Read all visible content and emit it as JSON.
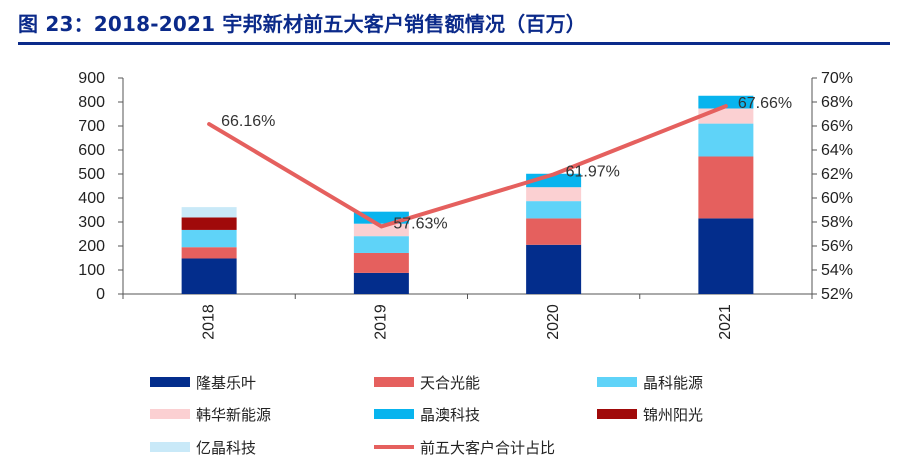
{
  "title": "图 23：2018-2021 宇邦新材前五大客户销售额情况（百万）",
  "chart_data": {
    "type": "bar",
    "stacked": true,
    "categories": [
      "2018",
      "2019",
      "2020",
      "2021"
    ],
    "series": [
      {
        "name": "隆基乐叶",
        "color": "#032d8c",
        "values": [
          148,
          88,
          205,
          315
        ]
      },
      {
        "name": "天合光能",
        "color": "#e5605e",
        "values": [
          47,
          83,
          110,
          258
        ]
      },
      {
        "name": "晶科能源",
        "color": "#5fd3f8",
        "values": [
          72,
          70,
          72,
          137
        ]
      },
      {
        "name": "韩华新能源",
        "color": "#fbd0d2",
        "values": [
          0,
          52,
          58,
          63
        ]
      },
      {
        "name": "晶澳科技",
        "color": "#08b4ee",
        "values": [
          0,
          50,
          56,
          53
        ]
      },
      {
        "name": "锦州阳光",
        "color": "#a00a0a",
        "values": [
          52,
          0,
          0,
          0
        ]
      },
      {
        "name": "亿晶科技",
        "color": "#c9e9f8",
        "values": [
          43,
          0,
          0,
          0
        ]
      }
    ],
    "line_series": {
      "name": "前五大客户合计占比",
      "color": "#e5605e",
      "values": [
        66.16,
        57.63,
        61.97,
        67.66
      ],
      "labels": [
        "66.16%",
        "57.63%",
        "61.97%",
        "67.66%"
      ]
    },
    "y_left": {
      "min": 0,
      "max": 900,
      "step": 100,
      "ticks": [
        "0",
        "100",
        "200",
        "300",
        "400",
        "500",
        "600",
        "700",
        "800",
        "900"
      ]
    },
    "y_right": {
      "min": 52,
      "max": 70,
      "step": 2,
      "ticks": [
        "52%",
        "54%",
        "56%",
        "58%",
        "60%",
        "62%",
        "64%",
        "66%",
        "68%",
        "70%"
      ]
    },
    "legend_position": "bottom"
  }
}
